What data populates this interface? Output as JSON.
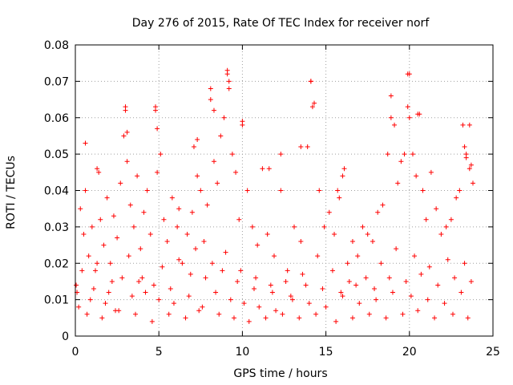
{
  "chart_data": {
    "type": "scatter",
    "title": "Day 276 of 2015, Rate Of TEC Index for receiver norf",
    "xlabel": "GPS time / hours",
    "ylabel": "ROTI / TECUs",
    "xlim": [
      0,
      25
    ],
    "ylim": [
      0,
      0.08
    ],
    "xticks": [
      0,
      5,
      10,
      15,
      20,
      25
    ],
    "xtick_labels": [
      "0",
      "5",
      "10",
      "15",
      "20",
      "25"
    ],
    "yticks": [
      0,
      0.01,
      0.02,
      0.03,
      0.04,
      0.05,
      0.06,
      0.07,
      0.08
    ],
    "ytick_labels": [
      "0",
      "0.01",
      "0.02",
      "0.03",
      "0.04",
      "0.05",
      "0.06",
      "0.07",
      "0.08"
    ],
    "grid": true,
    "marker": "+",
    "color": "#ff0000",
    "series": [
      {
        "x": [
          0.1,
          0.3,
          0.5,
          0.6,
          0.8,
          1.0,
          1.2,
          1.4,
          1.5,
          1.7,
          1.9,
          2.1,
          2.3,
          2.5,
          2.7,
          2.9,
          3.0,
          3.1,
          3.3,
          3.5,
          3.7,
          3.9,
          4.1,
          4.3,
          4.5,
          4.8,
          4.9,
          5.1,
          5.3,
          5.5,
          5.8,
          6.1,
          6.4,
          6.7,
          7.0,
          7.1,
          7.3,
          7.5,
          7.7,
          7.9,
          8.1,
          8.3,
          8.5,
          8.7,
          8.9,
          9.1,
          9.2,
          9.4,
          9.6,
          9.8,
          10.0,
          10.3,
          10.6,
          10.9,
          11.2,
          11.5,
          11.9,
          12.3,
          12.7,
          13.1,
          13.5,
          13.9,
          14.1,
          14.3,
          14.6,
          14.9,
          15.2,
          15.5,
          15.8,
          16.0,
          16.3,
          16.6,
          16.9,
          17.2,
          17.5,
          17.8,
          18.1,
          18.4,
          18.7,
          18.9,
          19.1,
          19.3,
          19.5,
          19.7,
          19.9,
          20.0,
          20.2,
          20.4,
          20.6,
          20.8,
          21.0,
          21.3,
          21.6,
          21.9,
          22.2,
          22.5,
          22.8,
          23.0,
          23.2,
          23.4,
          23.6,
          23.8,
          0.2,
          0.9,
          1.8,
          2.6,
          3.4,
          4.2,
          5.0,
          5.9,
          6.8,
          7.6,
          8.4,
          9.3,
          10.1,
          11.0,
          12.0,
          13.0,
          14.0,
          15.0,
          16.0,
          17.0,
          18.0,
          19.0,
          20.1,
          21.1,
          22.1,
          23.1,
          0.4,
          1.3,
          2.2,
          3.2,
          4.0,
          5.2,
          6.2,
          7.2,
          8.2,
          9.0,
          9.9,
          10.8,
          11.7,
          12.6,
          13.6,
          14.5,
          15.4,
          16.4,
          17.4,
          18.3,
          19.2,
          20.3,
          21.2,
          22.3,
          23.3,
          0.7,
          1.6,
          2.4,
          3.6,
          4.6,
          5.6,
          6.6,
          7.4,
          8.6,
          9.5,
          10.4,
          11.4,
          12.4,
          13.4,
          14.4,
          15.6,
          16.6,
          17.6,
          18.6,
          19.6,
          20.5,
          21.5,
          22.6,
          23.5,
          0.05,
          1.1,
          2.0,
          2.8,
          3.8,
          4.7,
          5.7,
          6.9,
          7.8,
          8.8,
          9.7,
          10.7,
          11.8,
          12.9,
          13.8,
          14.8,
          15.9,
          16.8,
          17.9,
          18.8,
          19.8,
          20.7,
          21.7,
          22.7,
          23.7,
          3.0,
          3.1,
          4.8,
          4.9,
          8.1,
          8.3,
          9.1,
          9.2,
          10.0,
          14.1,
          14.2,
          18.9,
          19.9,
          20.0,
          20.5,
          23.3,
          23.4,
          23.6,
          23.7,
          0.6,
          1.3,
          6.2,
          7.3,
          11.6,
          12.3,
          13.5,
          15.7,
          16.1
        ],
        "y": [
          0.012,
          0.035,
          0.028,
          0.04,
          0.022,
          0.03,
          0.018,
          0.045,
          0.032,
          0.025,
          0.038,
          0.02,
          0.033,
          0.027,
          0.042,
          0.055,
          0.062,
          0.048,
          0.036,
          0.03,
          0.044,
          0.024,
          0.034,
          0.04,
          0.028,
          0.062,
          0.045,
          0.05,
          0.032,
          0.026,
          0.038,
          0.03,
          0.02,
          0.028,
          0.034,
          0.052,
          0.044,
          0.04,
          0.026,
          0.036,
          0.065,
          0.048,
          0.042,
          0.055,
          0.06,
          0.072,
          0.07,
          0.05,
          0.045,
          0.032,
          0.058,
          0.04,
          0.03,
          0.025,
          0.046,
          0.028,
          0.022,
          0.04,
          0.018,
          0.03,
          0.026,
          0.052,
          0.07,
          0.064,
          0.04,
          0.03,
          0.034,
          0.028,
          0.038,
          0.044,
          0.02,
          0.026,
          0.022,
          0.03,
          0.028,
          0.026,
          0.034,
          0.036,
          0.05,
          0.066,
          0.058,
          0.042,
          0.048,
          0.05,
          0.063,
          0.072,
          0.05,
          0.044,
          0.061,
          0.04,
          0.032,
          0.045,
          0.035,
          0.028,
          0.03,
          0.032,
          0.038,
          0.04,
          0.058,
          0.05,
          0.046,
          0.042,
          0.008,
          0.01,
          0.009,
          0.007,
          0.011,
          0.012,
          0.01,
          0.009,
          0.011,
          0.008,
          0.012,
          0.01,
          0.009,
          0.008,
          0.007,
          0.01,
          0.009,
          0.008,
          0.011,
          0.009,
          0.01,
          0.012,
          0.011,
          0.01,
          0.009,
          0.012,
          0.018,
          0.02,
          0.015,
          0.022,
          0.016,
          0.019,
          0.021,
          0.024,
          0.02,
          0.023,
          0.018,
          0.016,
          0.014,
          0.015,
          0.017,
          0.022,
          0.018,
          0.015,
          0.016,
          0.02,
          0.024,
          0.022,
          0.019,
          0.021,
          0.02,
          0.006,
          0.005,
          0.007,
          0.006,
          0.004,
          0.006,
          0.005,
          0.007,
          0.006,
          0.005,
          0.004,
          0.005,
          0.006,
          0.005,
          0.006,
          0.004,
          0.005,
          0.006,
          0.005,
          0.006,
          0.007,
          0.005,
          0.006,
          0.005,
          0.014,
          0.013,
          0.012,
          0.016,
          0.015,
          0.014,
          0.013,
          0.017,
          0.016,
          0.018,
          0.015,
          0.013,
          0.012,
          0.011,
          0.014,
          0.013,
          0.012,
          0.014,
          0.013,
          0.016,
          0.015,
          0.017,
          0.014,
          0.016,
          0.015,
          0.063,
          0.056,
          0.063,
          0.057,
          0.068,
          0.062,
          0.073,
          0.068,
          0.059,
          0.07,
          0.063,
          0.06,
          0.072,
          0.06,
          0.061,
          0.052,
          0.049,
          0.058,
          0.047,
          0.053,
          0.046,
          0.035,
          0.054,
          0.046,
          0.05,
          0.052,
          0.04,
          0.046
        ]
      }
    ]
  }
}
